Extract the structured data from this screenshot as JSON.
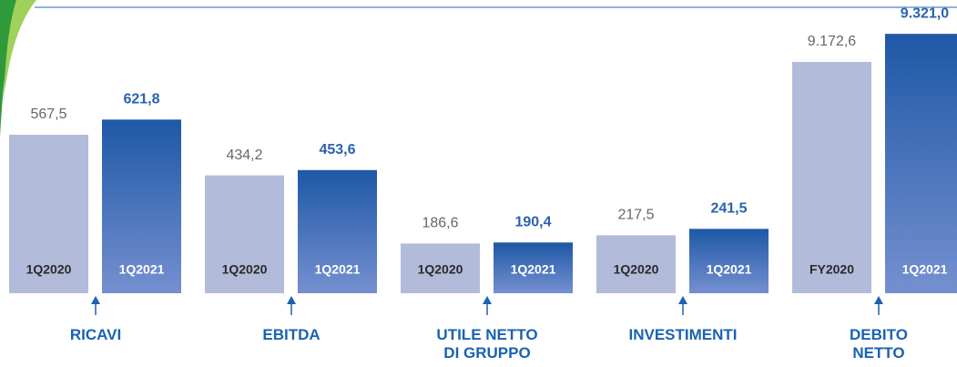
{
  "chart_data": [
    {
      "type": "bar",
      "label": "RICAVI",
      "categories": [
        "1Q2020",
        "1Q2021"
      ],
      "values": [
        567.5,
        621.8
      ],
      "value_labels": [
        "567,5",
        "621,8"
      ],
      "colors": [
        "#b3bbdb",
        "#2a62ae"
      ],
      "ylim": [
        0,
        1050
      ]
    },
    {
      "type": "bar",
      "label": "EBITDA",
      "categories": [
        "1Q2020",
        "1Q2021"
      ],
      "values": [
        434.2,
        453.6
      ],
      "value_labels": [
        "434,2",
        "453,6"
      ],
      "colors": [
        "#b3bbdb",
        "#2a62ae"
      ],
      "ylim": [
        0,
        1080
      ]
    },
    {
      "type": "bar",
      "label": "UTILE NETTO\nDI GRUPPO",
      "categories": [
        "1Q2020",
        "1Q2021"
      ],
      "values": [
        186.6,
        190.4
      ],
      "value_labels": [
        "186,6",
        "190,4"
      ],
      "colors": [
        "#b3bbdb",
        "#2a62ae"
      ],
      "ylim": [
        0,
        1100
      ]
    },
    {
      "type": "bar",
      "label": "INVESTIMENTI",
      "categories": [
        "1Q2020",
        "1Q2021"
      ],
      "values": [
        217.5,
        241.5
      ],
      "value_labels": [
        "217,5",
        "241,5"
      ],
      "colors": [
        "#b3bbdb",
        "#2a62ae"
      ],
      "ylim": [
        0,
        1100
      ]
    },
    {
      "type": "bar",
      "label": "DEBITO\nNETTO",
      "categories": [
        "FY2020",
        "1Q2021"
      ],
      "values": [
        9172.6,
        9321.0
      ],
      "value_labels": [
        "9.172,6",
        "9.321,0"
      ],
      "colors": [
        "#b3bbdb",
        "#2a62ae"
      ],
      "ylim": [
        7950,
        9500
      ]
    }
  ]
}
